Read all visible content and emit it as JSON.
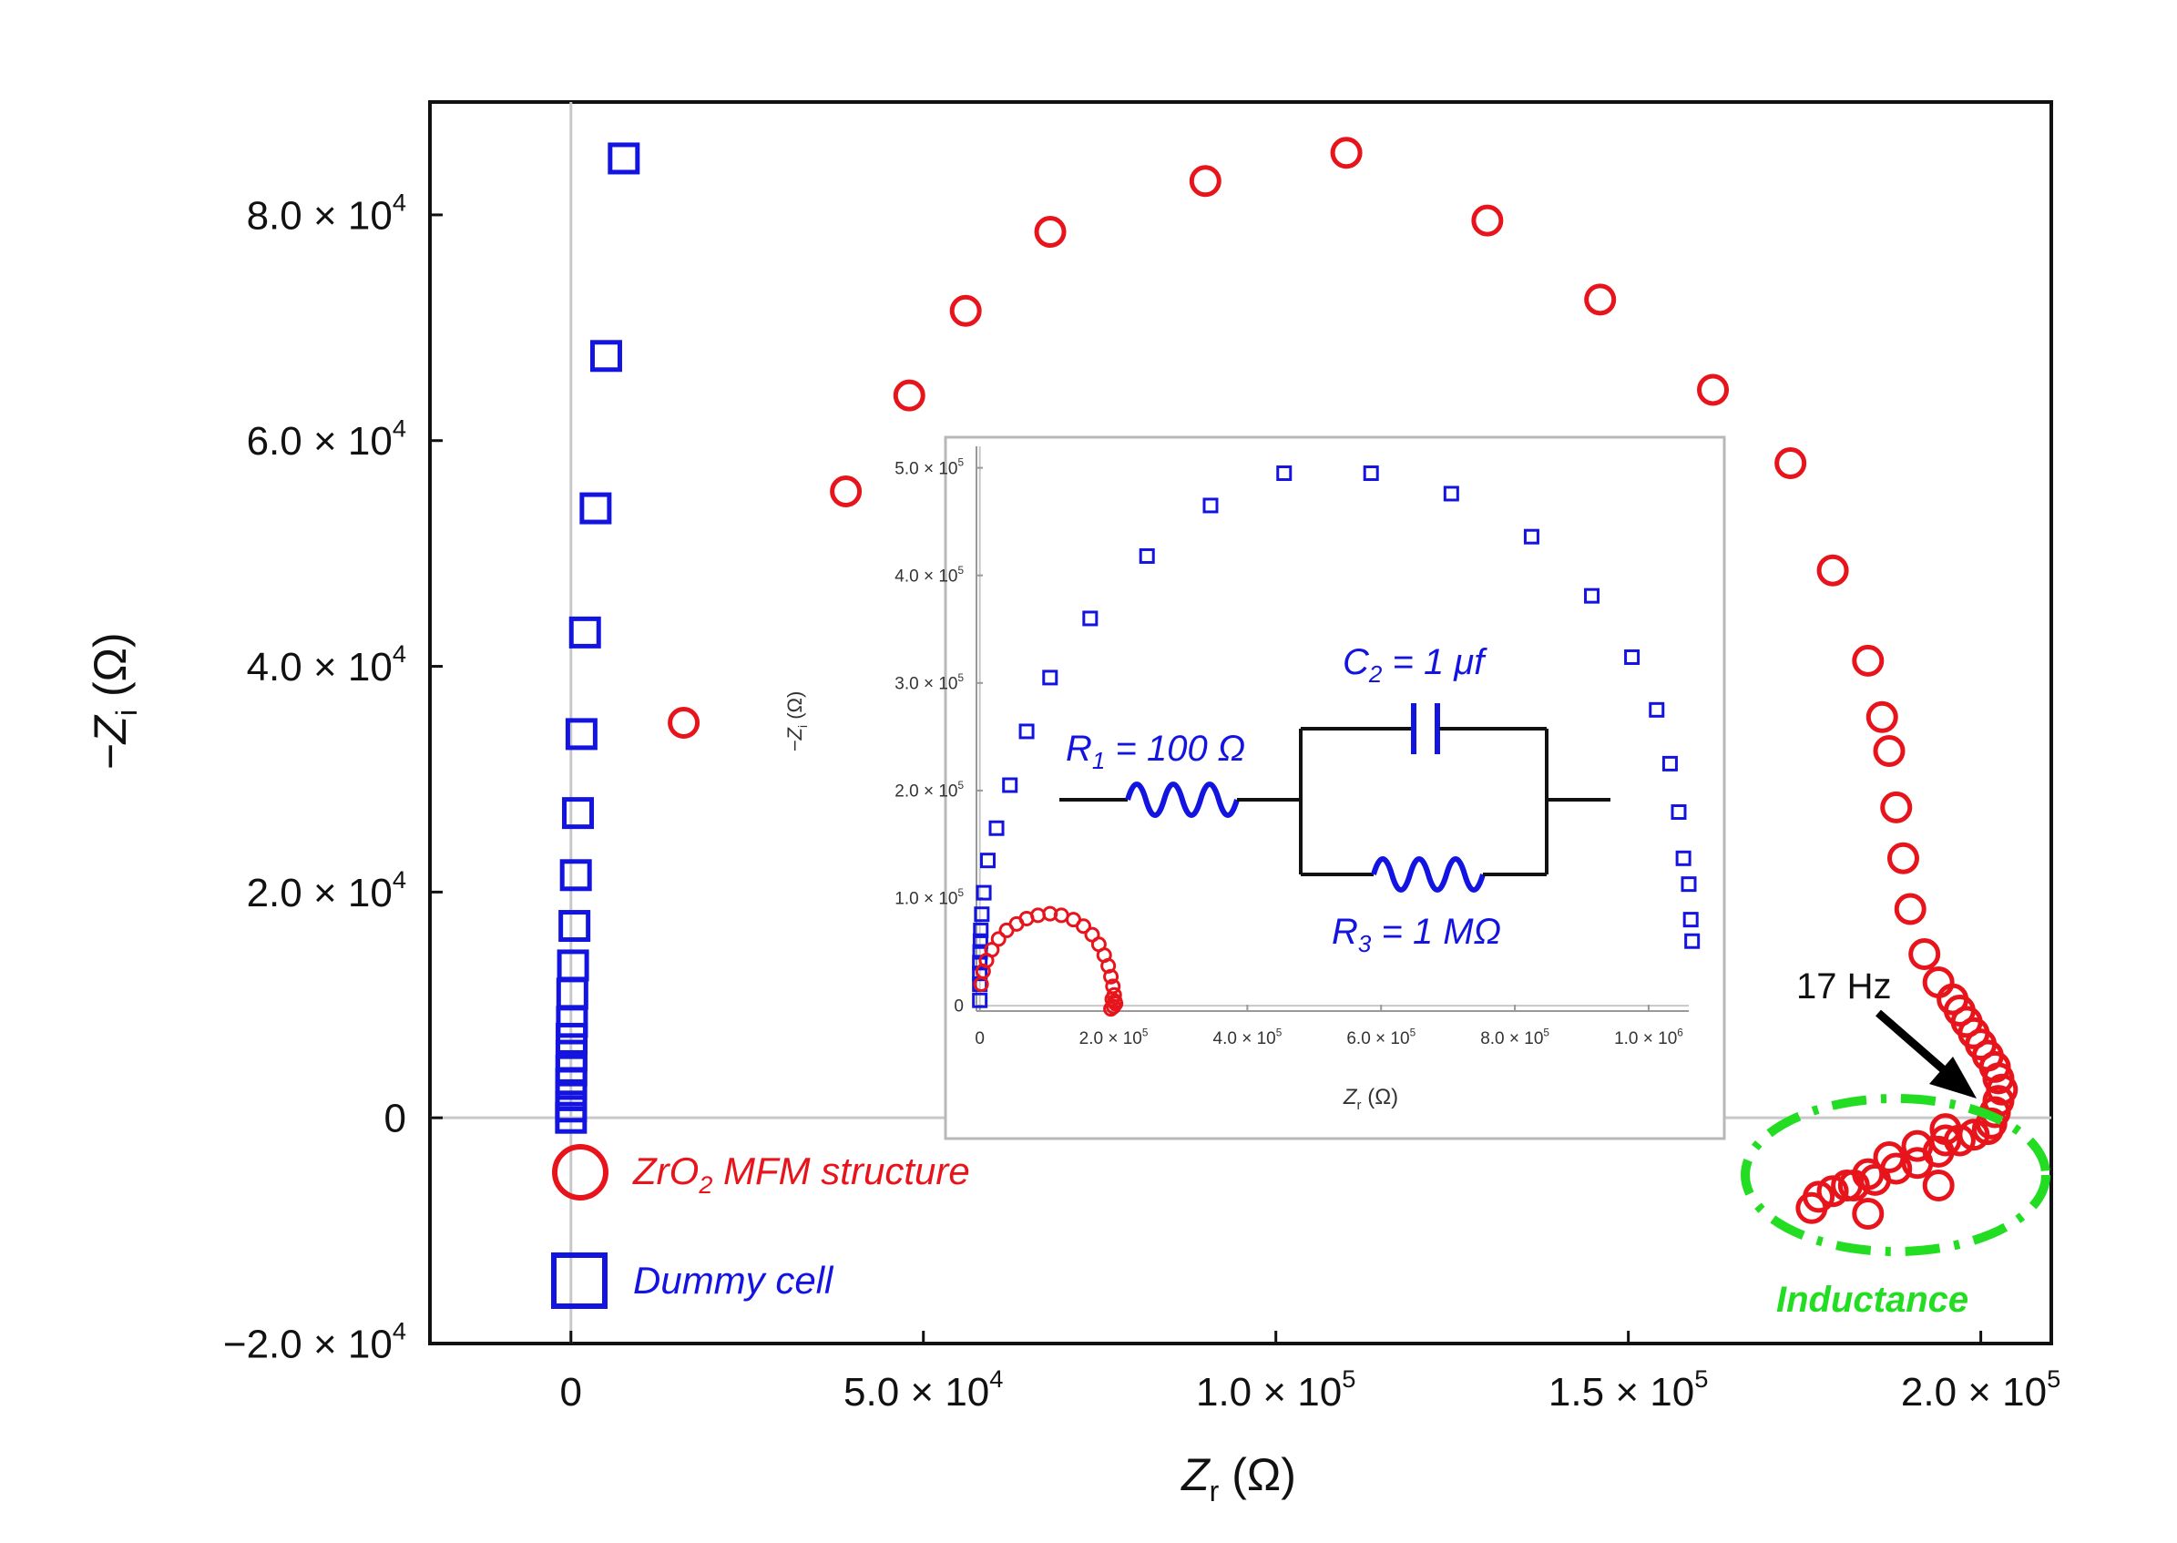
{
  "chart_data": [
    {
      "type": "scatter",
      "title": "",
      "xlabel_main": "Z",
      "xlabel_sub": "r",
      "xlabel_unit": " (Ω)",
      "ylabel_prefix": "−Z",
      "ylabel_sub": "i",
      "ylabel_unit": " (Ω)",
      "xlim": [
        -20000,
        210000
      ],
      "ylim": [
        -20000,
        90000
      ],
      "xticks": [
        {
          "value": 0,
          "label": "0"
        },
        {
          "value": 50000,
          "label": "5.0 × 10",
          "exp": "4"
        },
        {
          "value": 100000,
          "label": "1.0 × 10",
          "exp": "5"
        },
        {
          "value": 150000,
          "label": "1.5 × 10",
          "exp": "5"
        },
        {
          "value": 200000,
          "label": "2.0 × 10",
          "exp": "5"
        }
      ],
      "yticks": [
        {
          "value": -20000,
          "label": "−2.0 × 10",
          "exp": "4"
        },
        {
          "value": 0,
          "label": "0"
        },
        {
          "value": 20000,
          "label": "2.0 × 10",
          "exp": "4"
        },
        {
          "value": 40000,
          "label": "4.0 × 10",
          "exp": "4"
        },
        {
          "value": 60000,
          "label": "6.0 × 10",
          "exp": "4"
        },
        {
          "value": 80000,
          "label": "8.0 × 10",
          "exp": "4"
        }
      ],
      "series": [
        {
          "name": "ZrO₂ MFM structure",
          "marker": "circle",
          "color": "#e8141c",
          "points": [
            [
              16000,
              35000
            ],
            [
              39000,
              55500
            ],
            [
              48000,
              64000
            ],
            [
              56000,
              71500
            ],
            [
              68000,
              78500
            ],
            [
              90000,
              83000
            ],
            [
              110000,
              85500
            ],
            [
              130000,
              79500
            ],
            [
              146000,
              72500
            ],
            [
              162000,
              64500
            ],
            [
              173000,
              58000
            ],
            [
              179000,
              48500
            ],
            [
              184000,
              40500
            ],
            [
              186000,
              35500
            ],
            [
              187000,
              32500
            ],
            [
              188000,
              27500
            ],
            [
              189000,
              23000
            ],
            [
              190000,
              18500
            ],
            [
              192000,
              14500
            ],
            [
              194000,
              12000
            ],
            [
              196000,
              10500
            ],
            [
              197000,
              9500
            ],
            [
              198000,
              8500
            ],
            [
              199000,
              7500
            ],
            [
              200000,
              6500
            ],
            [
              201000,
              5500
            ],
            [
              202000,
              4500
            ],
            [
              202500,
              3500
            ],
            [
              203000,
              2500
            ],
            [
              202500,
              1500
            ],
            [
              202000,
              500
            ],
            [
              201500,
              -500
            ],
            [
              201000,
              -1000
            ],
            [
              199000,
              -1500
            ],
            [
              197000,
              -2000
            ],
            [
              194000,
              -3000
            ],
            [
              191000,
              -4000
            ],
            [
              188000,
              -4500
            ],
            [
              185000,
              -5500
            ],
            [
              182000,
              -6000
            ],
            [
              179000,
              -6500
            ],
            [
              177000,
              -7000
            ],
            [
              176000,
              -8000
            ],
            [
              181000,
              -6000
            ],
            [
              184000,
              -5000
            ],
            [
              187000,
              -3500
            ],
            [
              191000,
              -2500
            ],
            [
              195000,
              -1000
            ],
            [
              195000,
              -2000
            ],
            [
              194000,
              -6000
            ],
            [
              184000,
              -8500
            ]
          ]
        },
        {
          "name": "Dummy cell",
          "marker": "square",
          "color": "#1414e0",
          "points": [
            [
              7500,
              85000
            ],
            [
              5000,
              67500
            ],
            [
              3500,
              54000
            ],
            [
              2000,
              43000
            ],
            [
              1500,
              34000
            ],
            [
              1000,
              27000
            ],
            [
              700,
              21500
            ],
            [
              500,
              17000
            ],
            [
              300,
              13500
            ],
            [
              200,
              11000
            ],
            [
              150,
              8500
            ],
            [
              100,
              7000
            ],
            [
              80,
              5500
            ],
            [
              60,
              4200
            ],
            [
              40,
              3000
            ],
            [
              30,
              2000
            ],
            [
              20,
              1000
            ],
            [
              10,
              0
            ]
          ]
        }
      ],
      "legend": [
        {
          "marker": "circle",
          "color": "#e8141c",
          "label_pre": "ZrO",
          "label_sub": "2",
          "label_post": " MFM structure"
        },
        {
          "marker": "square",
          "color": "#1414e0",
          "label": "Dummy cell"
        }
      ],
      "legend_position": "bottom-left",
      "annotations": {
        "arrow_label": "17 Hz",
        "arrow_target": [
          201000,
          2500
        ],
        "ellipse_label": "Inductance",
        "ellipse_color": "#22dd22"
      }
    },
    {
      "type": "scatter",
      "role": "inset",
      "xlabel_main": "Z",
      "xlabel_sub": "r",
      "xlabel_unit": " (Ω)",
      "ylabel_prefix": "−Z",
      "ylabel_sub": "i",
      "ylabel_unit": " (Ω)",
      "xlim": [
        -5000,
        1060000
      ],
      "ylim": [
        -5000,
        520000
      ],
      "xticks": [
        {
          "value": 0,
          "label": "0"
        },
        {
          "value": 200000,
          "label": "2.0 × 10",
          "exp": "5"
        },
        {
          "value": 400000,
          "label": "4.0 × 10",
          "exp": "5"
        },
        {
          "value": 600000,
          "label": "6.0 × 10",
          "exp": "5"
        },
        {
          "value": 800000,
          "label": "8.0 × 10",
          "exp": "5"
        },
        {
          "value": 1000000,
          "label": "1.0 × 10",
          "exp": "6"
        }
      ],
      "yticks": [
        {
          "value": 0,
          "label": "0"
        },
        {
          "value": 100000,
          "label": "1.0 × 10",
          "exp": "5"
        },
        {
          "value": 200000,
          "label": "2.0 × 10",
          "exp": "5"
        },
        {
          "value": 300000,
          "label": "3.0 × 10",
          "exp": "5"
        },
        {
          "value": 400000,
          "label": "4.0 × 10",
          "exp": "5"
        },
        {
          "value": 500000,
          "label": "5.0 × 10",
          "exp": "5"
        }
      ],
      "series": [
        {
          "name": "Dummy cell",
          "marker": "square",
          "color": "#1414e0",
          "points": [
            [
              0,
              5000
            ],
            [
              0,
              20000
            ],
            [
              0,
              30000
            ],
            [
              0,
              40000
            ],
            [
              500,
              50000
            ],
            [
              1000,
              60000
            ],
            [
              1500,
              70000
            ],
            [
              3000,
              85000
            ],
            [
              6000,
              105000
            ],
            [
              12000,
              135000
            ],
            [
              25000,
              165000
            ],
            [
              45000,
              205000
            ],
            [
              70000,
              255000
            ],
            [
              105000,
              305000
            ],
            [
              165000,
              360000
            ],
            [
              250000,
              418000
            ],
            [
              345000,
              465000
            ],
            [
              455000,
              495000
            ],
            [
              585000,
              495000
            ],
            [
              705000,
              476000
            ],
            [
              825000,
              436000
            ],
            [
              915000,
              381000
            ],
            [
              975000,
              324000
            ],
            [
              1012000,
              275000
            ],
            [
              1032000,
              225000
            ],
            [
              1045000,
              180000
            ],
            [
              1052000,
              137000
            ],
            [
              1060000,
              113000
            ],
            [
              1063000,
              80000
            ],
            [
              1065000,
              60000
            ]
          ]
        },
        {
          "name": "ZrO₂ MFM structure",
          "marker": "circle",
          "color": "#e8141c",
          "points": [
            [
              2000,
              20000
            ],
            [
              5000,
              32000
            ],
            [
              10000,
              42000
            ],
            [
              18000,
              52000
            ],
            [
              28000,
              62000
            ],
            [
              40000,
              70000
            ],
            [
              55000,
              76000
            ],
            [
              70000,
              81000
            ],
            [
              87000,
              84000
            ],
            [
              105000,
              85500
            ],
            [
              122000,
              84000
            ],
            [
              140000,
              80000
            ],
            [
              155000,
              74000
            ],
            [
              168000,
              66000
            ],
            [
              178000,
              57000
            ],
            [
              186000,
              47000
            ],
            [
              192000,
              37000
            ],
            [
              196000,
              27000
            ],
            [
              199000,
              18000
            ],
            [
              201000,
              10000
            ],
            [
              202000,
              4000
            ],
            [
              200000,
              -1000
            ],
            [
              196000,
              -3000
            ],
            [
              203000,
              2000
            ],
            [
              198000,
              6000
            ]
          ]
        }
      ],
      "circuit": {
        "r1": "R",
        "r1_sub": "1",
        "r1_val": " = 100 Ω",
        "c2": "C",
        "c2_sub": "2",
        "c2_val": " = 1 μf",
        "r3": "R",
        "r3_sub": "3",
        "r3_val": " = 1 MΩ",
        "color": "#1414e0"
      }
    }
  ]
}
